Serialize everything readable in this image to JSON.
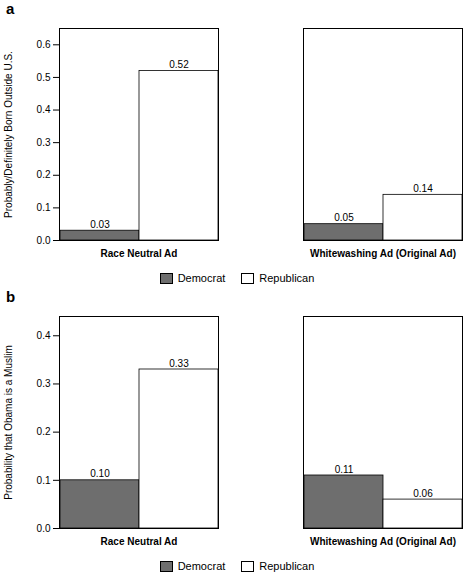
{
  "chart_data": [
    {
      "type": "bar",
      "title": "a",
      "ylabel": "Probably/Definitely Born Outside U.S.",
      "categories": [
        "Race Neutral Ad",
        "Whitewashing Ad (Original Ad)"
      ],
      "series": [
        {
          "name": "Democrat",
          "color": "#6e6e6e",
          "values": [
            0.03,
            0.05
          ],
          "value_labels": [
            "0.03",
            "0.05"
          ]
        },
        {
          "name": "Republican",
          "color": "#ffffff",
          "values": [
            0.52,
            0.14
          ],
          "value_labels": [
            "0.52",
            "0.14"
          ]
        }
      ],
      "ylim": [
        0,
        0.65
      ],
      "yticks": [
        {
          "value": 0.0,
          "label": "0.0"
        },
        0.1,
        0.2,
        0.3,
        0.4,
        0.5,
        0.6
      ],
      "data_labels": true,
      "legend": "bottom"
    },
    {
      "type": "bar",
      "title": "b",
      "ylabel": "Probability that Obama is a Muslim",
      "categories": [
        "Race Neutral Ad",
        "Whitewashing Ad (Original Ad)"
      ],
      "series": [
        {
          "name": "Democrat",
          "color": "#6e6e6e",
          "values": [
            0.1,
            0.11
          ],
          "value_labels": [
            "0.10",
            "0.11"
          ]
        },
        {
          "name": "Republican",
          "color": "#ffffff",
          "values": [
            0.33,
            0.06
          ],
          "value_labels": [
            "0.33",
            "0.06"
          ]
        }
      ],
      "ylim": [
        0,
        0.44
      ],
      "yticks": [
        {
          "value": 0.0,
          "label": "0.0"
        },
        0.1,
        0.2,
        0.3,
        0.4
      ],
      "data_labels": true,
      "legend": "bottom"
    }
  ]
}
